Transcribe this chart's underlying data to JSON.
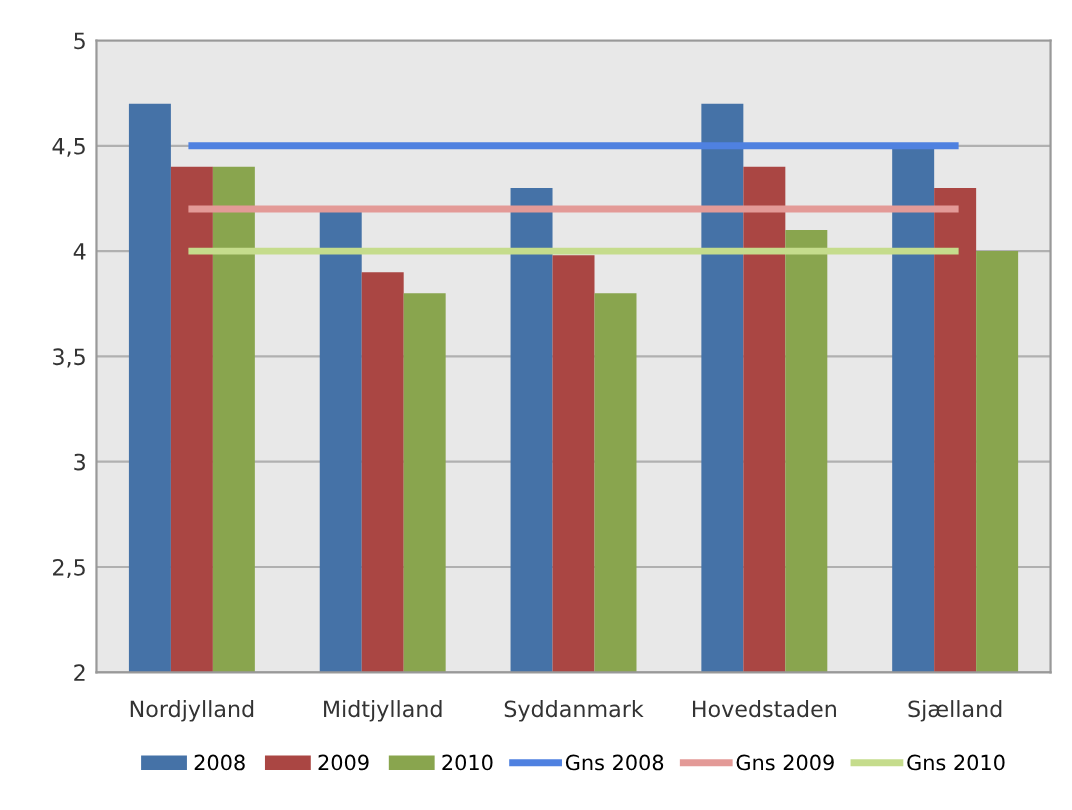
{
  "chart_data": {
    "type": "bar",
    "categories": [
      "Nordjylland",
      "Midtjylland",
      "Syddanmark",
      "Hovedstaden",
      "Sjælland"
    ],
    "series": [
      {
        "name": "2008",
        "color": "#4572a7",
        "values": [
          4.7,
          4.2,
          4.3,
          4.7,
          4.5
        ]
      },
      {
        "name": "2009",
        "color": "#aa4643",
        "values": [
          4.4,
          3.9,
          3.98,
          4.4,
          4.3
        ]
      },
      {
        "name": "2010",
        "color": "#89a54e",
        "values": [
          4.4,
          3.8,
          3.8,
          4.1,
          4.0
        ]
      },
      {
        "name": "Gns 2008",
        "type": "line",
        "color": "#4f81e0",
        "values": [
          4.5,
          4.5,
          4.5,
          4.5,
          4.5
        ]
      },
      {
        "name": "Gns 2009",
        "type": "line",
        "color": "#e39a97",
        "values": [
          4.2,
          4.2,
          4.2,
          4.2,
          4.2
        ]
      },
      {
        "name": "Gns 2010",
        "type": "line",
        "color": "#c5dc8c",
        "values": [
          4.0,
          4.0,
          4.0,
          4.0,
          4.0
        ]
      }
    ],
    "ylim": [
      2,
      5
    ],
    "yticks": [
      {
        "value": 2,
        "label": "2"
      },
      {
        "value": 2.5,
        "label": "2,5"
      },
      {
        "value": 3,
        "label": "3"
      },
      {
        "value": 3.5,
        "label": "3,5"
      },
      {
        "value": 4,
        "label": "4"
      },
      {
        "value": 4.5,
        "label": "4,5"
      },
      {
        "value": 5,
        "label": "5"
      }
    ],
    "grid": "y",
    "legend": "bottom"
  }
}
